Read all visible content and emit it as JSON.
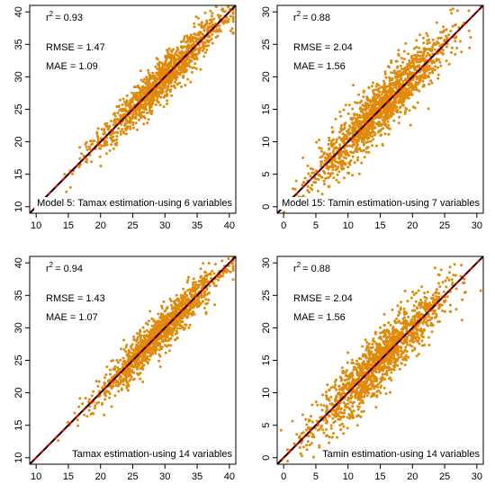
{
  "figure": {
    "point_color": "#E08A0B",
    "line_color": "#CC0000",
    "dash_color": "#000000"
  },
  "chart_data": [
    {
      "type": "scatter",
      "xlim": [
        9,
        41
      ],
      "ylim": [
        9,
        41
      ],
      "xticks": [
        10,
        15,
        20,
        25,
        30,
        35,
        40
      ],
      "yticks": [
        10,
        15,
        20,
        25,
        30,
        35,
        40
      ],
      "r2_prefix": "r",
      "r2_value": "= 0.93",
      "rmse": "RMSE = 1.47",
      "mae": "MAE = 1.09",
      "caption": "Model 5: Tamax estimation-using 6 variables",
      "reference_line": "1:1",
      "n_points": 1300,
      "center": 29.5,
      "spread": 5.0,
      "noise": 1.5,
      "seed": 11
    },
    {
      "type": "scatter",
      "xlim": [
        -1,
        31
      ],
      "ylim": [
        -1,
        31
      ],
      "xticks": [
        0,
        5,
        10,
        15,
        20,
        25,
        30
      ],
      "yticks": [
        0,
        5,
        10,
        15,
        20,
        25,
        30
      ],
      "r2_prefix": "r",
      "r2_value": "= 0.88",
      "rmse": "RMSE = 2.04",
      "mae": "MAE = 1.56",
      "caption": "Model 15: Tamin estimation-using 7 variables",
      "reference_line": "1:1",
      "n_points": 1500,
      "center": 15.0,
      "spread": 5.2,
      "noise": 2.1,
      "seed": 23
    },
    {
      "type": "scatter",
      "xlim": [
        9,
        41
      ],
      "ylim": [
        9,
        41
      ],
      "xticks": [
        10,
        15,
        20,
        25,
        30,
        35,
        40
      ],
      "yticks": [
        10,
        15,
        20,
        25,
        30,
        35,
        40
      ],
      "r2_prefix": "r",
      "r2_value": "= 0.94",
      "rmse": "RMSE = 1.43",
      "mae": "MAE = 1.07",
      "caption": "Tamax estimation-using 14 variables",
      "reference_line": "1:1",
      "n_points": 1300,
      "center": 29.5,
      "spread": 5.0,
      "noise": 1.45,
      "seed": 37
    },
    {
      "type": "scatter",
      "xlim": [
        -1,
        31
      ],
      "ylim": [
        -1,
        31
      ],
      "xticks": [
        0,
        5,
        10,
        15,
        20,
        25,
        30
      ],
      "yticks": [
        0,
        5,
        10,
        15,
        20,
        25,
        30
      ],
      "r2_prefix": "r",
      "r2_value": "= 0.88",
      "rmse": "RMSE = 2.04",
      "mae": "MAE = 1.56",
      "caption": "Tamin estimation-using 14 variables",
      "reference_line": "1:1",
      "n_points": 1500,
      "center": 15.0,
      "spread": 5.2,
      "noise": 2.1,
      "seed": 53
    }
  ]
}
